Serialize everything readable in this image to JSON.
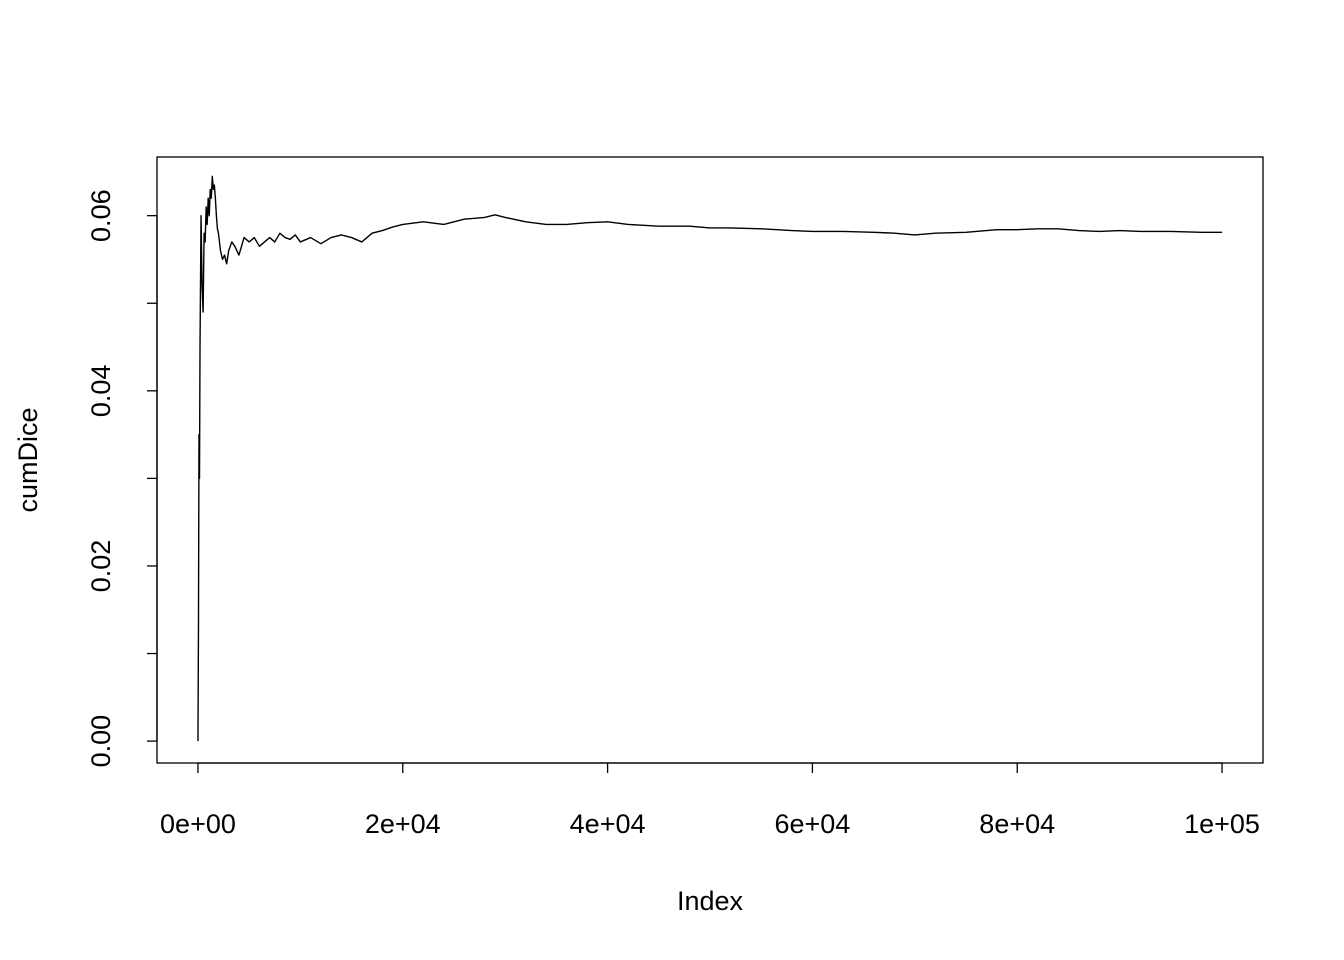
{
  "chart_data": {
    "type": "line",
    "title": "",
    "xlabel": "Index",
    "ylabel": "cumDice",
    "xlim": [
      -4000,
      104000
    ],
    "ylim": [
      -0.0025,
      0.0667
    ],
    "x_ticks": [
      0,
      20000,
      40000,
      60000,
      80000,
      100000
    ],
    "x_tick_labels": [
      "0e+00",
      "2e+04",
      "4e+04",
      "6e+04",
      "8e+04",
      "1e+05"
    ],
    "y_ticks": [
      0.0,
      0.01,
      0.02,
      0.03,
      0.04,
      0.05,
      0.06
    ],
    "y_tick_labels": [
      "0.00",
      "",
      "0.02",
      "",
      "0.04",
      "",
      "0.06"
    ],
    "grid": false,
    "legend": "none",
    "line_color": "#000000",
    "series": [
      {
        "x": [
          0,
          50,
          100,
          150,
          200,
          300,
          400,
          500,
          600,
          700,
          800,
          900,
          1000,
          1100,
          1200,
          1300,
          1400,
          1500,
          1600,
          1700,
          1800,
          1900,
          2000,
          2200,
          2400,
          2600,
          2800,
          3000,
          3300,
          3600,
          4000,
          4500,
          5000,
          5500,
          6000,
          6500,
          7000,
          7500,
          8000,
          8500,
          9000,
          9500,
          10000,
          11000,
          12000,
          13000,
          14000,
          15000,
          16000,
          17000,
          18000,
          19000,
          20000,
          22000,
          24000,
          26000,
          28000,
          29000,
          30000,
          32000,
          34000,
          36000,
          38000,
          40000,
          42000,
          45000,
          48000,
          50000,
          52000,
          55000,
          58000,
          60000,
          63000,
          66000,
          68000,
          70000,
          72000,
          75000,
          78000,
          80000,
          82000,
          84000,
          86000,
          88000,
          90000,
          92000,
          95000,
          98000,
          100000
        ],
        "y": [
          0.0,
          0.013,
          0.035,
          0.03,
          0.045,
          0.06,
          0.052,
          0.049,
          0.058,
          0.057,
          0.061,
          0.059,
          0.062,
          0.06,
          0.063,
          0.062,
          0.0645,
          0.063,
          0.0635,
          0.062,
          0.06,
          0.0585,
          0.058,
          0.056,
          0.055,
          0.0555,
          0.0545,
          0.056,
          0.057,
          0.0565,
          0.0555,
          0.0575,
          0.057,
          0.0575,
          0.0565,
          0.057,
          0.0575,
          0.057,
          0.058,
          0.0575,
          0.0573,
          0.0578,
          0.057,
          0.0575,
          0.0568,
          0.0575,
          0.0578,
          0.0575,
          0.057,
          0.058,
          0.0583,
          0.0587,
          0.059,
          0.0593,
          0.059,
          0.0596,
          0.0598,
          0.0601,
          0.0598,
          0.0593,
          0.059,
          0.059,
          0.0592,
          0.0593,
          0.059,
          0.0588,
          0.0588,
          0.0586,
          0.0586,
          0.0585,
          0.0583,
          0.0582,
          0.0582,
          0.0581,
          0.058,
          0.0578,
          0.058,
          0.0581,
          0.0584,
          0.0584,
          0.0585,
          0.0585,
          0.0583,
          0.0582,
          0.0583,
          0.0582,
          0.0582,
          0.0581,
          0.0581
        ]
      }
    ]
  }
}
